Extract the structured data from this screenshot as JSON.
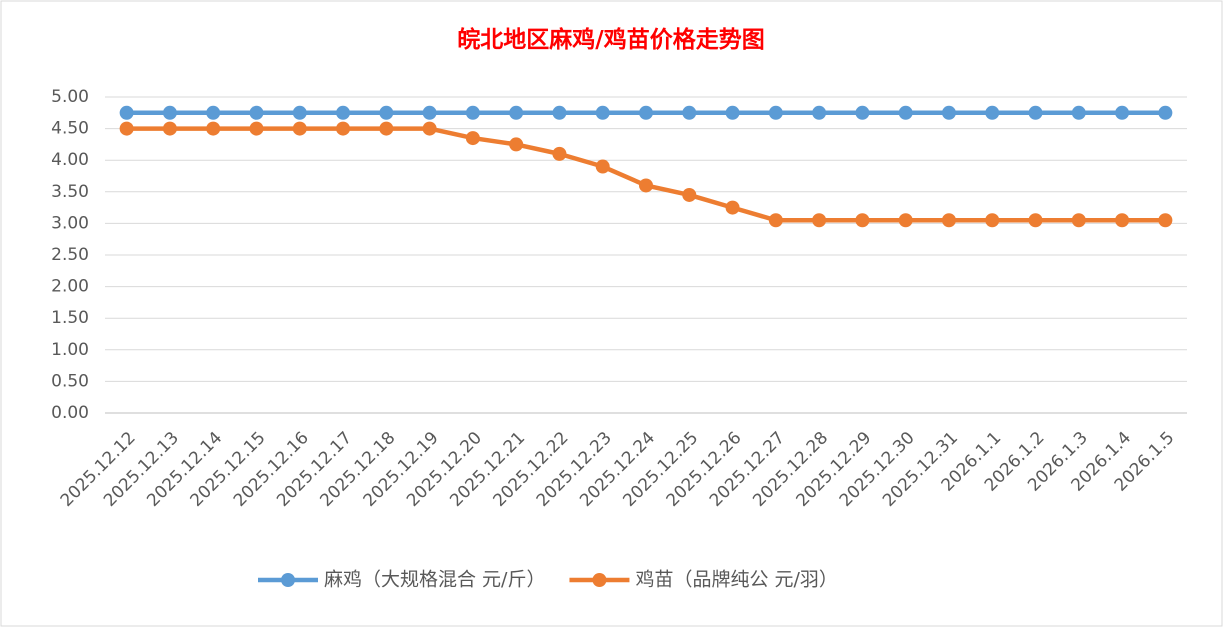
{
  "chart_data": {
    "type": "line",
    "title": "皖北地区麻鸡/鸡苗价格走势图",
    "categories": [
      "2025.12.12",
      "2025.12.13",
      "2025.12.14",
      "2025.12.15",
      "2025.12.16",
      "2025.12.17",
      "2025.12.18",
      "2025.12.19",
      "2025.12.20",
      "2025.12.21",
      "2025.12.22",
      "2025.12.23",
      "2025.12.24",
      "2025.12.25",
      "2025.12.26",
      "2025.12.27",
      "2025.12.28",
      "2025.12.29",
      "2025.12.30",
      "2025.12.31",
      "2026.1.1",
      "2026.1.2",
      "2026.1.3",
      "2026.1.4",
      "2026.1.5"
    ],
    "series": [
      {
        "name": "麻鸡（大规格混合 元/斤）",
        "color": "#5b9bd5",
        "values": [
          4.75,
          4.75,
          4.75,
          4.75,
          4.75,
          4.75,
          4.75,
          4.75,
          4.75,
          4.75,
          4.75,
          4.75,
          4.75,
          4.75,
          4.75,
          4.75,
          4.75,
          4.75,
          4.75,
          4.75,
          4.75,
          4.75,
          4.75,
          4.75,
          4.75
        ]
      },
      {
        "name": "鸡苗（品牌纯公 元/羽）",
        "color": "#ed7d31",
        "values": [
          4.5,
          4.5,
          4.5,
          4.5,
          4.5,
          4.5,
          4.5,
          4.5,
          4.35,
          4.25,
          4.1,
          3.9,
          3.6,
          3.45,
          3.25,
          3.05,
          3.05,
          3.05,
          3.05,
          3.05,
          3.05,
          3.05,
          3.05,
          3.05,
          3.05
        ]
      }
    ],
    "ylim": [
      0,
      5
    ],
    "yticks": [
      {
        "value": 0,
        "label": "0.00"
      },
      {
        "value": 0.5,
        "label": "0.50"
      },
      {
        "value": 1,
        "label": "1.00"
      },
      {
        "value": 1.5,
        "label": "1.50"
      },
      {
        "value": 2,
        "label": "2.00"
      },
      {
        "value": 2.5,
        "label": "2.50"
      },
      {
        "value": 3,
        "label": "3.00"
      },
      {
        "value": 3.5,
        "label": "3.50"
      },
      {
        "value": 4,
        "label": "4.00"
      },
      {
        "value": 4.5,
        "label": "4.50"
      },
      {
        "value": 5,
        "label": "5.00"
      }
    ],
    "grid": true,
    "legend": "bottom"
  }
}
